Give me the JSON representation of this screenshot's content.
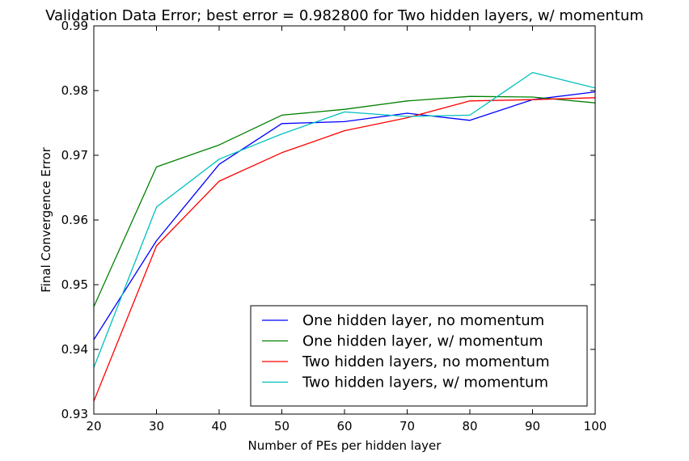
{
  "chart_data": {
    "type": "line",
    "title": "Validation Data Error; best error = 0.982800 for Two hidden layers, w/ momentum",
    "xlabel": "Number of PEs per hidden layer",
    "ylabel": "Final Convergence Error",
    "xlim": [
      20,
      100
    ],
    "ylim": [
      0.93,
      0.99
    ],
    "xticks": [
      "20",
      "30",
      "40",
      "50",
      "60",
      "70",
      "80",
      "90",
      "100"
    ],
    "yticks": [
      "0.93",
      "0.94",
      "0.95",
      "0.96",
      "0.97",
      "0.98",
      "0.99"
    ],
    "grid": false,
    "legend_position": "lower-right",
    "x": [
      20,
      30,
      40,
      50,
      60,
      70,
      80,
      90,
      100
    ],
    "series": [
      {
        "name": "One hidden layer, no momentum",
        "color": "#0000ff",
        "values": [
          0.9415,
          0.9568,
          0.9686,
          0.9749,
          0.9752,
          0.9765,
          0.9754,
          0.9786,
          0.9798
        ]
      },
      {
        "name": "One hidden layer, w/ momentum",
        "color": "#008000",
        "values": [
          0.9466,
          0.9682,
          0.9716,
          0.9762,
          0.9771,
          0.9784,
          0.9791,
          0.979,
          0.9781
        ]
      },
      {
        "name": "Two hidden layers, no momentum",
        "color": "#ff0000",
        "values": [
          0.932,
          0.956,
          0.966,
          0.9704,
          0.9738,
          0.9758,
          0.9784,
          0.9786,
          0.9789
        ]
      },
      {
        "name": "Two hidden layers, w/ momentum",
        "color": "#00bfbf",
        "values": [
          0.9372,
          0.962,
          0.9694,
          0.9733,
          0.9767,
          0.976,
          0.9762,
          0.9828,
          0.9804
        ]
      }
    ]
  }
}
